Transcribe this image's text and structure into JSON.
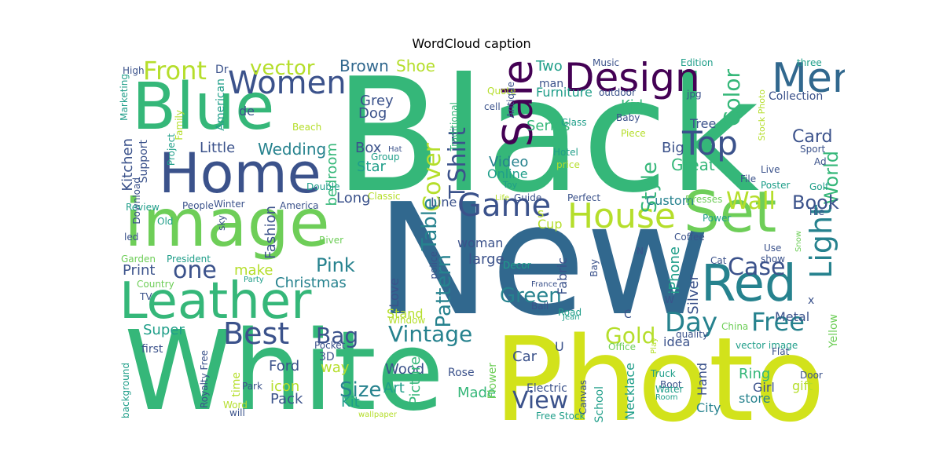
{
  "title": "WordCloud caption",
  "palette": {
    "purple": "#440154",
    "indigo": "#3b528b",
    "blue": "#31688e",
    "teal": "#26828e",
    "green_teal": "#1f9e89",
    "green": "#35b779",
    "light_green": "#6ece58",
    "lime": "#b5de2b",
    "yellow": "#d2e21b"
  },
  "words": [
    {
      "text": "Black",
      "color": "green"
    },
    {
      "text": "New",
      "color": "blue"
    },
    {
      "text": "Photo",
      "color": "yellow"
    },
    {
      "text": "White",
      "color": "green"
    },
    {
      "text": "Home",
      "color": "indigo"
    },
    {
      "text": "Blue",
      "color": "green"
    },
    {
      "text": "image",
      "color": "light_green"
    },
    {
      "text": "Leather",
      "color": "green"
    },
    {
      "text": "Set",
      "color": "light_green"
    },
    {
      "text": "Red",
      "color": "teal"
    },
    {
      "text": "House",
      "color": "lime"
    },
    {
      "text": "Design",
      "color": "purple"
    },
    {
      "text": "Men",
      "color": "blue"
    },
    {
      "text": "Sale",
      "color": "purple"
    },
    {
      "text": "Women",
      "color": "indigo"
    },
    {
      "text": "Top",
      "color": "indigo"
    },
    {
      "text": "Game",
      "color": "indigo"
    },
    {
      "text": "Best",
      "color": "indigo"
    },
    {
      "text": "Light",
      "color": "teal"
    },
    {
      "text": "Front",
      "color": "lime"
    },
    {
      "text": "Free",
      "color": "teal"
    },
    {
      "text": "Day",
      "color": "teal"
    },
    {
      "text": "Case",
      "color": "indigo"
    },
    {
      "text": "Cover",
      "color": "lime"
    },
    {
      "text": "Shirt",
      "color": "indigo"
    },
    {
      "text": "T",
      "color": "indigo"
    },
    {
      "text": "Vintage",
      "color": "teal"
    },
    {
      "text": "Gold",
      "color": "lime"
    },
    {
      "text": "Bag",
      "color": "indigo"
    },
    {
      "text": "Wall",
      "color": "lime"
    },
    {
      "text": "vector",
      "color": "lime"
    },
    {
      "text": "Color",
      "color": "green"
    },
    {
      "text": "Style",
      "color": "green"
    },
    {
      "text": "Pattern",
      "color": "teal"
    },
    {
      "text": "Table",
      "color": "teal"
    },
    {
      "text": "Green",
      "color": "teal"
    },
    {
      "text": "Size",
      "color": "teal"
    },
    {
      "text": "View",
      "color": "indigo"
    },
    {
      "text": "one",
      "color": "indigo"
    },
    {
      "text": "Pink",
      "color": "teal"
    },
    {
      "text": "World",
      "color": "green"
    },
    {
      "text": "Book",
      "color": "indigo"
    },
    {
      "text": "Card",
      "color": "indigo"
    },
    {
      "text": "Great",
      "color": "green"
    },
    {
      "text": "Wedding",
      "color": "teal"
    },
    {
      "text": "Christmas",
      "color": "teal"
    },
    {
      "text": "Shoe",
      "color": "lime"
    },
    {
      "text": "Brown",
      "color": "blue"
    },
    {
      "text": "Little",
      "color": "indigo"
    },
    {
      "text": "Grey",
      "color": "indigo"
    },
    {
      "text": "Dog",
      "color": "indigo"
    },
    {
      "text": "Box",
      "color": "indigo"
    },
    {
      "text": "Star",
      "color": "green_teal"
    },
    {
      "text": "Kid",
      "color": "green"
    },
    {
      "text": "Two",
      "color": "green_teal"
    },
    {
      "text": "Series",
      "color": "green"
    },
    {
      "text": "Tree",
      "color": "indigo"
    },
    {
      "text": "Big",
      "color": "indigo"
    },
    {
      "text": "Video",
      "color": "teal"
    },
    {
      "text": "Online",
      "color": "green_teal"
    },
    {
      "text": "Furniture",
      "color": "green_teal"
    },
    {
      "text": "Kitchen",
      "color": "indigo"
    },
    {
      "text": "Support",
      "color": "indigo"
    },
    {
      "text": "bedroom",
      "color": "green"
    },
    {
      "text": "Line",
      "color": "indigo"
    },
    {
      "text": "Long",
      "color": "indigo"
    },
    {
      "text": "Print",
      "color": "indigo"
    },
    {
      "text": "make",
      "color": "lime"
    },
    {
      "text": "Fashion",
      "color": "indigo"
    },
    {
      "text": "Custom",
      "color": "teal"
    },
    {
      "text": "Super",
      "color": "green_teal"
    },
    {
      "text": "Ford",
      "color": "indigo"
    },
    {
      "text": "way",
      "color": "lime"
    },
    {
      "text": "icon",
      "color": "lime"
    },
    {
      "text": "Pack",
      "color": "indigo"
    },
    {
      "text": "Kit",
      "color": "green_teal"
    },
    {
      "text": "Art",
      "color": "green_teal"
    },
    {
      "text": "Wood",
      "color": "indigo"
    },
    {
      "text": "Picture",
      "color": "green"
    },
    {
      "text": "Made",
      "color": "green"
    },
    {
      "text": "Car",
      "color": "indigo"
    },
    {
      "text": "Love",
      "color": "indigo"
    },
    {
      "text": "large",
      "color": "indigo"
    },
    {
      "text": "woman",
      "color": "indigo"
    },
    {
      "text": "Cup",
      "color": "lime"
    },
    {
      "text": "Fabric",
      "color": "indigo"
    },
    {
      "text": "Stand",
      "color": "lime"
    },
    {
      "text": "iPhone",
      "color": "green_teal"
    },
    {
      "text": "Silver",
      "color": "indigo"
    },
    {
      "text": "idea",
      "color": "indigo"
    },
    {
      "text": "Hand",
      "color": "indigo"
    },
    {
      "text": "City",
      "color": "teal"
    },
    {
      "text": "Ring",
      "color": "green"
    },
    {
      "text": "Girl",
      "color": "indigo"
    },
    {
      "text": "store",
      "color": "teal"
    },
    {
      "text": "gift",
      "color": "lime"
    },
    {
      "text": "Metal",
      "color": "indigo"
    },
    {
      "text": "Yellow",
      "color": "light_green"
    },
    {
      "text": "Necklace",
      "color": "green_teal"
    },
    {
      "text": "School",
      "color": "green_teal"
    },
    {
      "text": "Flower",
      "color": "light_green"
    },
    {
      "text": "Rose",
      "color": "indigo"
    },
    {
      "text": "Electric",
      "color": "indigo"
    },
    {
      "text": "Canvas",
      "color": "indigo"
    },
    {
      "text": "first",
      "color": "indigo"
    },
    {
      "text": "3D",
      "color": "indigo"
    },
    {
      "text": "time",
      "color": "lime"
    },
    {
      "text": "U",
      "color": "indigo"
    },
    {
      "text": "C",
      "color": "indigo"
    },
    {
      "text": "s",
      "color": "lime"
    },
    {
      "text": "x",
      "color": "indigo"
    },
    {
      "text": "Collection",
      "color": "indigo"
    },
    {
      "text": "Sport",
      "color": "indigo"
    },
    {
      "text": "Live",
      "color": "indigo"
    },
    {
      "text": "Ad",
      "color": "indigo"
    },
    {
      "text": "Golf",
      "color": "green_teal"
    },
    {
      "text": "Poster",
      "color": "green_teal"
    },
    {
      "text": "File",
      "color": "indigo"
    },
    {
      "text": "Stock Photo",
      "color": "lime"
    },
    {
      "text": "three",
      "color": "green_teal"
    },
    {
      "text": "Edition",
      "color": "green_teal"
    },
    {
      "text": "jpg",
      "color": "indigo"
    },
    {
      "text": "Music",
      "color": "indigo"
    },
    {
      "text": "outdoor",
      "color": "indigo"
    },
    {
      "text": "Baby",
      "color": "indigo"
    },
    {
      "text": "Glass",
      "color": "green_teal"
    },
    {
      "text": "cell",
      "color": "indigo"
    },
    {
      "text": "Quote",
      "color": "lime"
    },
    {
      "text": "Antique",
      "color": "indigo"
    },
    {
      "text": "man",
      "color": "indigo"
    },
    {
      "text": "Traditional",
      "color": "green"
    },
    {
      "text": "Piece",
      "color": "lime"
    },
    {
      "text": "Hotel",
      "color": "green_teal"
    },
    {
      "text": "price",
      "color": "lime"
    },
    {
      "text": "Toy",
      "color": "green_teal"
    },
    {
      "text": "Perfect",
      "color": "indigo"
    },
    {
      "text": "Guide",
      "color": "indigo"
    },
    {
      "text": "Life",
      "color": "lime"
    },
    {
      "text": "Dresses",
      "color": "light_green"
    },
    {
      "text": "Power",
      "color": "green_teal"
    },
    {
      "text": "Tile",
      "color": "indigo"
    },
    {
      "text": "Snow",
      "color": "light_green"
    },
    {
      "text": "Use",
      "color": "indigo"
    },
    {
      "text": "show",
      "color": "indigo"
    },
    {
      "text": "Cat",
      "color": "indigo"
    },
    {
      "text": "Coffee",
      "color": "indigo"
    },
    {
      "text": "N",
      "color": "indigo"
    },
    {
      "text": "Bay",
      "color": "indigo"
    },
    {
      "text": "W",
      "color": "indigo"
    },
    {
      "text": "quality",
      "color": "indigo"
    },
    {
      "text": "China",
      "color": "light_green"
    },
    {
      "text": "vector image",
      "color": "green_teal"
    },
    {
      "text": "Flat",
      "color": "indigo"
    },
    {
      "text": "Door",
      "color": "indigo"
    },
    {
      "text": "Office",
      "color": "light_green"
    },
    {
      "text": "Play",
      "color": "lime"
    },
    {
      "text": "Truck",
      "color": "green_teal"
    },
    {
      "text": "Boot",
      "color": "indigo"
    },
    {
      "text": "Water",
      "color": "green_teal"
    },
    {
      "text": "Room",
      "color": "green_teal"
    },
    {
      "text": "Road",
      "color": "green_teal"
    },
    {
      "text": "Jean",
      "color": "green_teal"
    },
    {
      "text": "Ball",
      "color": "indigo"
    },
    {
      "text": "France",
      "color": "indigo"
    },
    {
      "text": "Decor",
      "color": "green_teal"
    },
    {
      "text": "Pocket",
      "color": "indigo"
    },
    {
      "text": "Window",
      "color": "lime"
    },
    {
      "text": "police",
      "color": "indigo"
    },
    {
      "text": "Classic",
      "color": "lime"
    },
    {
      "text": "Free Stock",
      "color": "green_teal"
    },
    {
      "text": "wallpaper",
      "color": "lime"
    },
    {
      "text": "Hat",
      "color": "indigo"
    },
    {
      "text": "Group",
      "color": "green_teal"
    },
    {
      "text": "Double",
      "color": "green_teal"
    },
    {
      "text": "Beach",
      "color": "lime"
    },
    {
      "text": "Family",
      "color": "lime"
    },
    {
      "text": "Project",
      "color": "green_teal"
    },
    {
      "text": "American",
      "color": "green_teal"
    },
    {
      "text": "de",
      "color": "indigo"
    },
    {
      "text": "Dr",
      "color": "indigo"
    },
    {
      "text": "High",
      "color": "indigo"
    },
    {
      "text": "Marketing",
      "color": "green_teal"
    },
    {
      "text": "Download",
      "color": "indigo"
    },
    {
      "text": "Review",
      "color": "green_teal"
    },
    {
      "text": "People",
      "color": "indigo"
    },
    {
      "text": "Winter",
      "color": "indigo"
    },
    {
      "text": "America",
      "color": "indigo"
    },
    {
      "text": "Old",
      "color": "green_teal"
    },
    {
      "text": "sky",
      "color": "indigo"
    },
    {
      "text": "led",
      "color": "indigo"
    },
    {
      "text": "River",
      "color": "light_green"
    },
    {
      "text": "Garden",
      "color": "light_green"
    },
    {
      "text": "President",
      "color": "green_teal"
    },
    {
      "text": "Country",
      "color": "light_green"
    },
    {
      "text": "Party",
      "color": "green_teal"
    },
    {
      "text": "TV",
      "color": "indigo"
    },
    {
      "text": "background",
      "color": "green_teal"
    },
    {
      "text": "Royalty Free",
      "color": "indigo"
    },
    {
      "text": "Park",
      "color": "indigo"
    },
    {
      "text": "Word",
      "color": "lime"
    },
    {
      "text": "will",
      "color": "indigo"
    }
  ]
}
